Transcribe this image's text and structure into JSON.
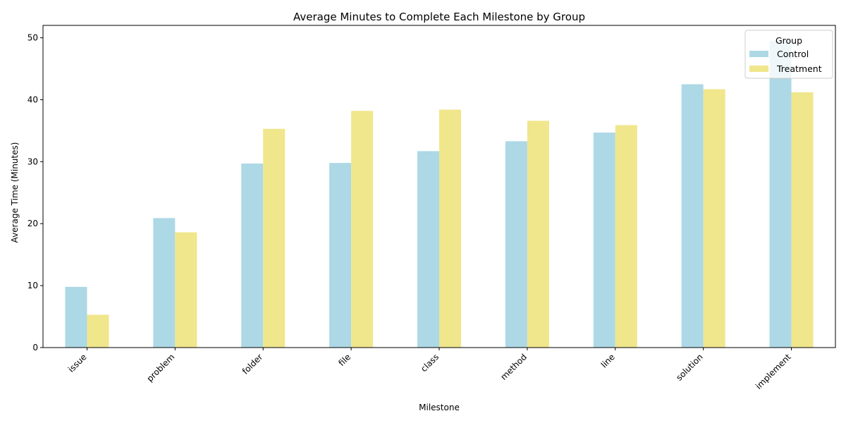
{
  "chart_data": {
    "type": "bar",
    "title": "Average Minutes to Complete Each Milestone by Group",
    "xlabel": "Milestone",
    "ylabel": "Average Time (Minutes)",
    "categories": [
      "issue",
      "problem",
      "folder",
      "file",
      "class",
      "method",
      "line",
      "solution",
      "implement"
    ],
    "series": [
      {
        "name": "Control",
        "color": "#add8e6",
        "values": [
          9.8,
          20.9,
          29.7,
          29.8,
          31.7,
          33.3,
          34.7,
          42.5,
          49.5
        ]
      },
      {
        "name": "Treatment",
        "color": "#f0e68c",
        "values": [
          5.3,
          18.6,
          35.3,
          38.2,
          38.4,
          36.6,
          35.9,
          41.7,
          41.2
        ]
      }
    ],
    "ylim": [
      0,
      52
    ],
    "yticks": [
      0,
      10,
      20,
      30,
      40,
      50
    ],
    "legend": {
      "title": "Group",
      "position": "top-right"
    },
    "grid": false
  }
}
